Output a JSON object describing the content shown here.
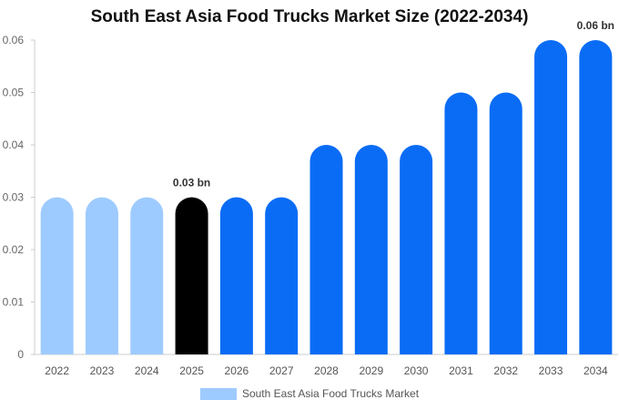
{
  "chart_data": {
    "type": "bar",
    "title": "South East Asia Food Trucks Market Size (2022-2034)",
    "categories": [
      "2022",
      "2023",
      "2024",
      "2025",
      "2026",
      "2027",
      "2028",
      "2029",
      "2030",
      "2031",
      "2032",
      "2033",
      "2034"
    ],
    "series": [
      {
        "name": "South East Asia Food Trucks Market",
        "values": [
          0.03,
          0.03,
          0.03,
          0.03,
          0.03,
          0.03,
          0.04,
          0.04,
          0.04,
          0.05,
          0.05,
          0.06,
          0.06
        ]
      }
    ],
    "ylim": [
      0,
      0.06
    ],
    "yticks": [
      "0",
      "0.01",
      "0.02",
      "0.03",
      "0.04",
      "0.05",
      "0.06"
    ],
    "data_labels": [
      {
        "category": "2025",
        "text": "0.03 bn"
      },
      {
        "category": "2034",
        "text": "0.06 bn"
      }
    ],
    "colors": {
      "historical": "#9ecbff",
      "current": "#000000",
      "forecast": "#0a6cf5",
      "legend": "#9ecbff"
    },
    "grid": false,
    "legend_position": "bottom-center"
  }
}
